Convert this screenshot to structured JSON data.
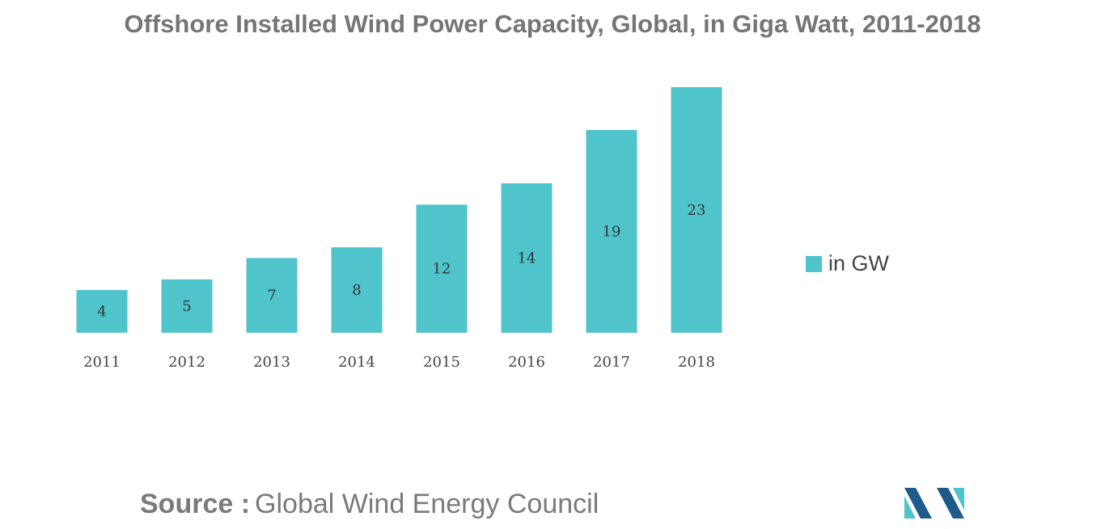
{
  "chart_data": {
    "type": "bar",
    "title": "Offshore Installed Wind Power Capacity, Global, in Giga Watt, 2011-2018",
    "categories": [
      "2011",
      "2012",
      "2013",
      "2014",
      "2015",
      "2016",
      "2017",
      "2018"
    ],
    "series": [
      {
        "name": "in GW",
        "values": [
          4,
          5,
          7,
          8,
          12,
          14,
          19,
          23
        ]
      }
    ],
    "value_labels": [
      "4",
      "5",
      "7",
      "8",
      "12",
      "14",
      "19",
      "23"
    ],
    "xlabel": "",
    "ylabel": "",
    "ylim": [
      0,
      23
    ],
    "grid": false,
    "legend_position": "right",
    "colors": {
      "bar": "#4fc4ca",
      "label": "#333333",
      "tick": "#444444"
    }
  },
  "source": {
    "prefix": "Source :",
    "text": "Global Wind Energy Council"
  },
  "logo": {
    "colors": [
      "#1f5a8c",
      "#4fc4ca"
    ]
  }
}
